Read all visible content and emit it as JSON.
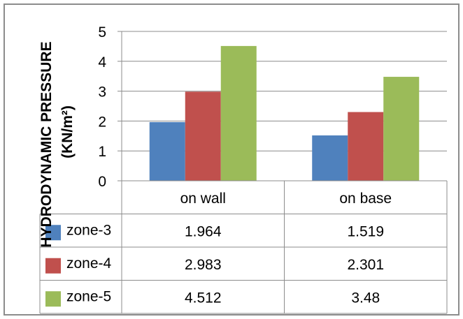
{
  "chart_data": {
    "type": "bar",
    "title": "",
    "xlabel": "",
    "ylabel": "HYDRODYNAMIC PRESSURE",
    "ylabel_unit": "(KN/m²)",
    "ylim": [
      0,
      5
    ],
    "yticks": [
      0,
      1,
      2,
      3,
      4,
      5
    ],
    "ytick_labels": [
      "0",
      "1",
      "2",
      "3",
      "4",
      "5"
    ],
    "grid": true,
    "legend": "data-table",
    "categories": [
      "on wall",
      "on base"
    ],
    "series": [
      {
        "name": "zone-3",
        "values": [
          1.964,
          1.519
        ],
        "labels": [
          "1.964",
          "1.519"
        ],
        "color": "#4f81bd"
      },
      {
        "name": "zone-4",
        "values": [
          2.983,
          2.301
        ],
        "labels": [
          "2.983",
          "2.301"
        ],
        "color": "#c0504d"
      },
      {
        "name": "zone-5",
        "values": [
          4.512,
          3.48
        ],
        "labels": [
          "4.512",
          "3.48"
        ],
        "color": "#9bbb59"
      }
    ]
  }
}
